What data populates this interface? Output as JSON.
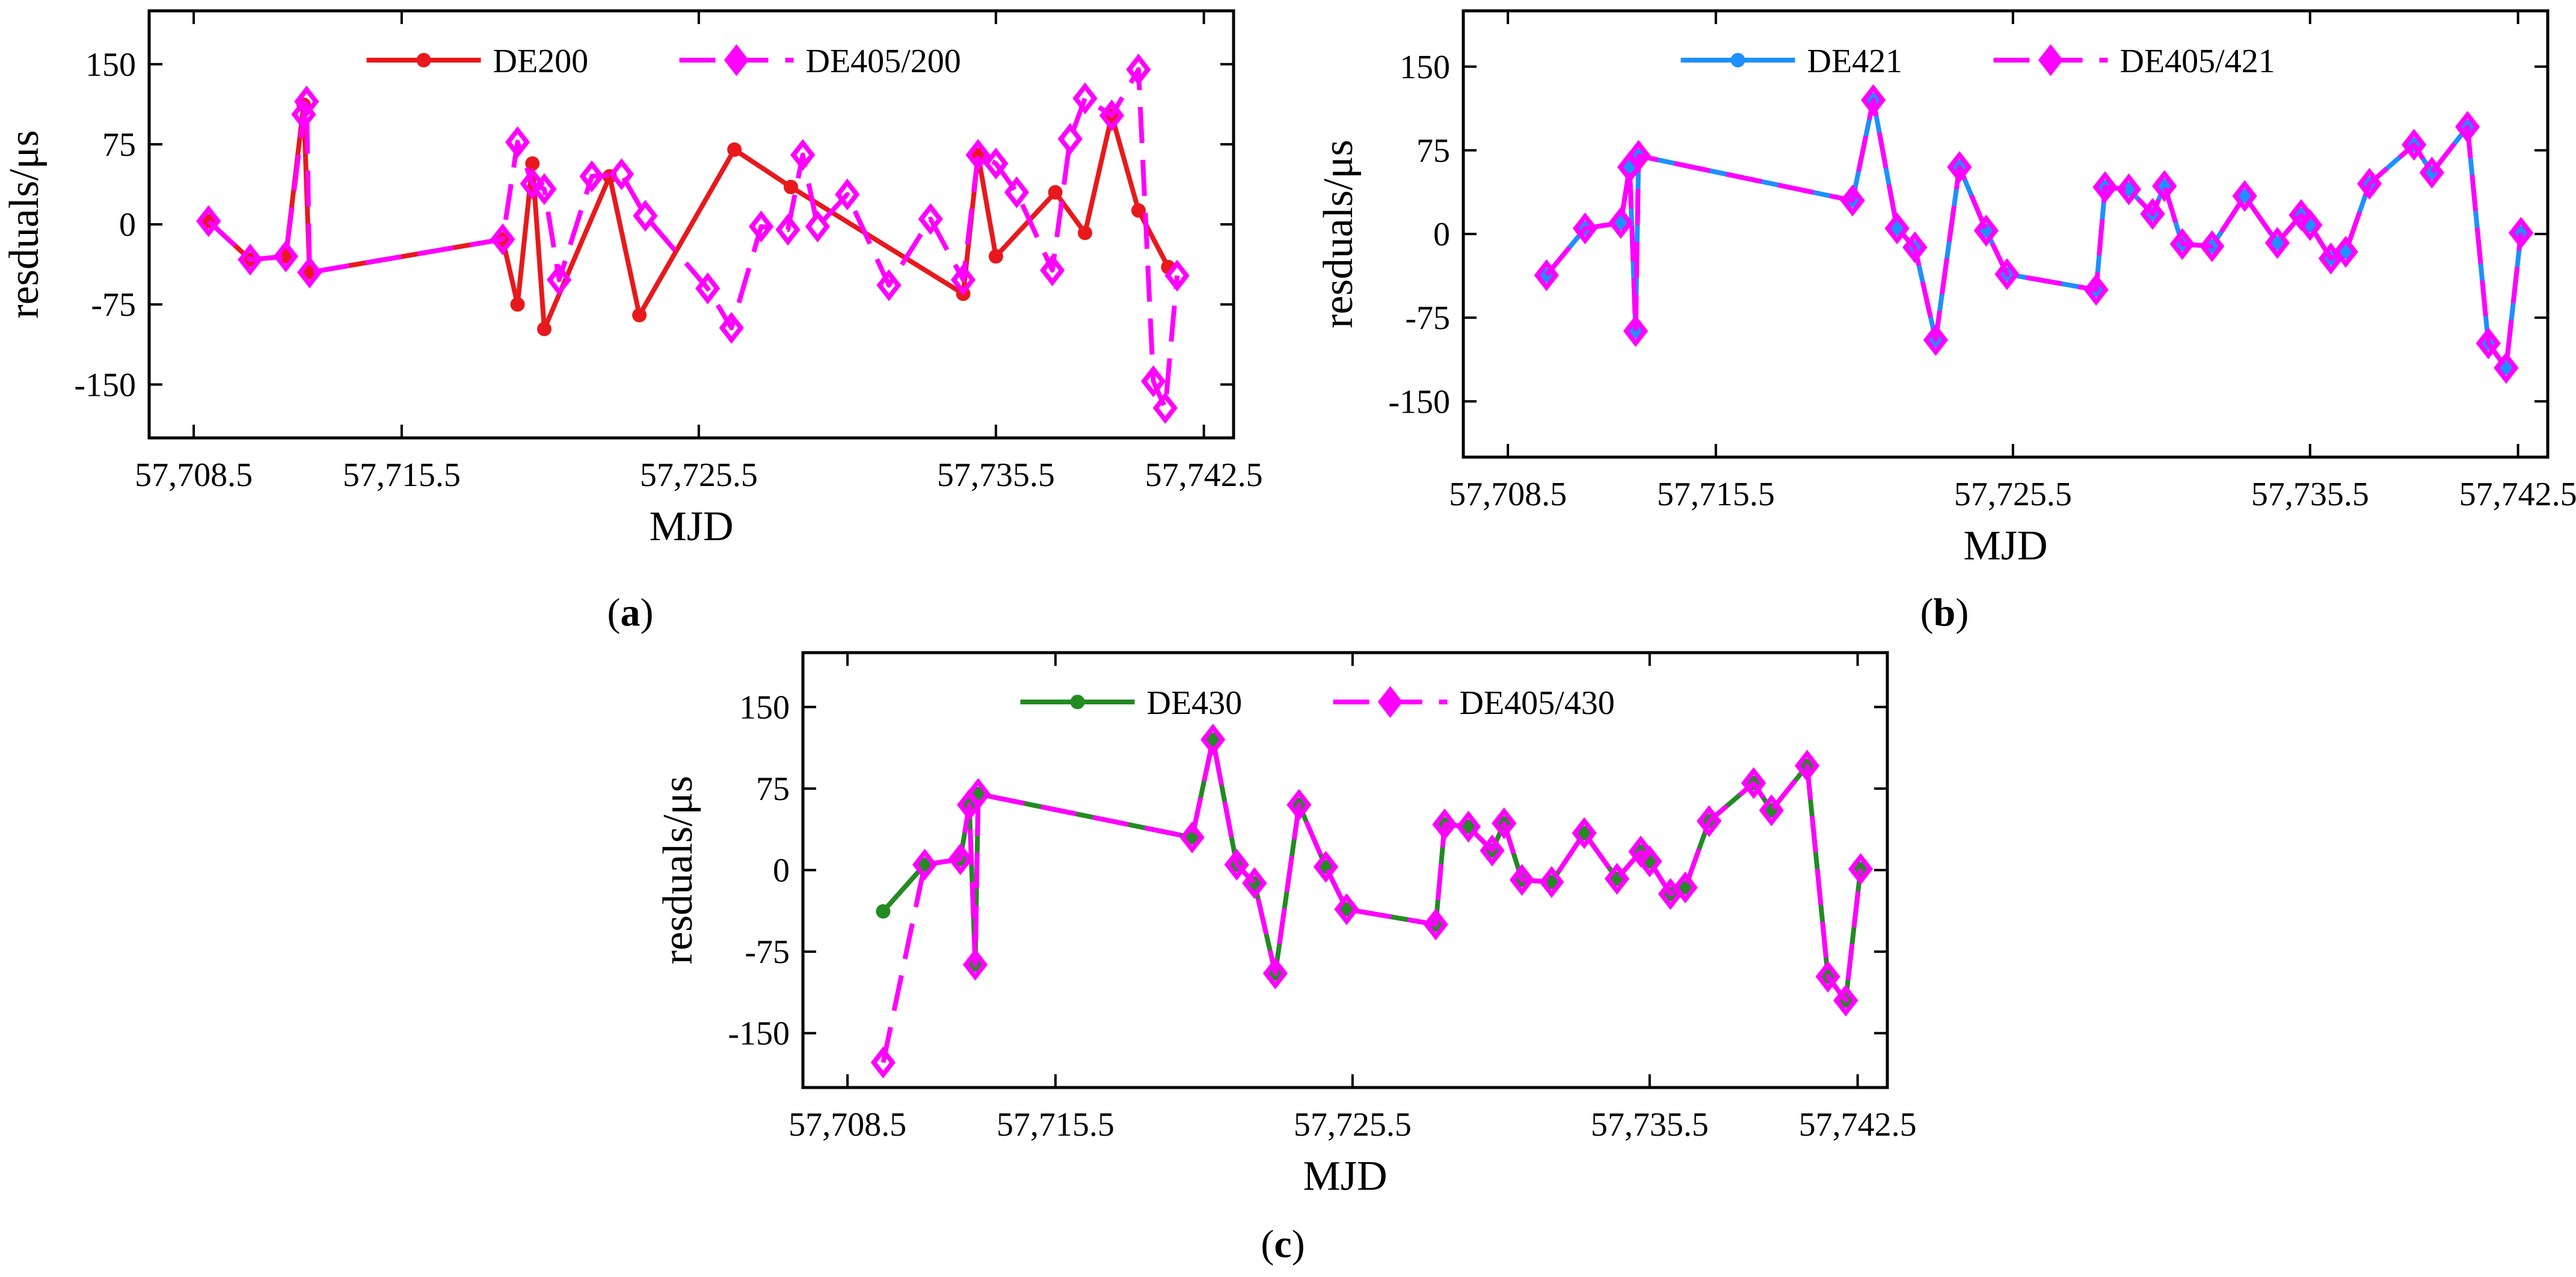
{
  "chart_data": [
    {
      "id": "a",
      "type": "line",
      "panel_label": "a",
      "xlabel": "MJD",
      "ylabel": "resduals/μs",
      "xlim": [
        57707,
        57743.5
      ],
      "ylim": [
        -200,
        200
      ],
      "xticks": [
        57708.5,
        57715.5,
        57725.5,
        57735.5,
        57742.5
      ],
      "xtick_labels": [
        "57,708.5",
        "57,715.5",
        "57,725.5",
        "57,735.5",
        "57,742.5"
      ],
      "yticks": [
        150,
        75,
        0,
        -75,
        -150
      ],
      "ytick_labels": [
        "150",
        "75",
        "0",
        "-75",
        "-150"
      ],
      "legend_position": "top-center",
      "series": [
        {
          "name": "DE200",
          "color": "#e8191c",
          "marker": "circle",
          "dash": "solid",
          "x": [
            57709.0,
            57710.4,
            57711.6,
            57712.2,
            57712.4,
            57718.9,
            57719.4,
            57719.9,
            57720.3,
            57722.5,
            57723.5,
            57726.7,
            57728.6,
            57734.4,
            57734.9,
            57735.5,
            57737.5,
            57738.5,
            57739.4,
            57740.3,
            57741.3
          ],
          "y": [
            3,
            -33,
            -30,
            112,
            -45,
            -14,
            -75,
            57,
            -98,
            45,
            -85,
            70,
            35,
            -65,
            65,
            -30,
            30,
            -8,
            102,
            13,
            -40
          ]
        },
        {
          "name": "DE405/200",
          "color": "#ff00ff",
          "marker": "diamond",
          "dash": "dashed",
          "x": [
            57709.0,
            57710.4,
            57711.6,
            57712.2,
            57712.3,
            57712.4,
            57718.9,
            57719.4,
            57719.9,
            57720.3,
            57720.8,
            57721.9,
            57722.9,
            57723.7,
            57725.8,
            57726.6,
            57727.6,
            57728.5,
            57729.0,
            57729.5,
            57730.5,
            57731.9,
            57733.3,
            57734.4,
            57734.9,
            57735.5,
            57736.2,
            57737.4,
            57738.0,
            57738.5,
            57739.4,
            57740.3,
            57740.8,
            57741.2,
            57741.6
          ],
          "y": [
            3,
            -33,
            -30,
            103,
            115,
            -45,
            -14,
            77,
            38,
            33,
            -52,
            45,
            47,
            8,
            -60,
            -97,
            -2,
            -5,
            65,
            -2,
            28,
            -57,
            5,
            -52,
            65,
            57,
            30,
            -43,
            80,
            118,
            102,
            145,
            -147,
            -172,
            -48
          ]
        }
      ]
    },
    {
      "id": "b",
      "type": "line",
      "panel_label": "b",
      "xlabel": "MJD",
      "ylabel": "resduals/μs",
      "xlim": [
        57707,
        57743.5
      ],
      "ylim": [
        -200,
        200
      ],
      "xticks": [
        57708.5,
        57715.5,
        57725.5,
        57735.5,
        57742.5
      ],
      "xtick_labels": [
        "57,708.5",
        "57,715.5",
        "57,725.5",
        "57,735.5",
        "57,742.5"
      ],
      "yticks": [
        150,
        75,
        0,
        -75,
        -150
      ],
      "ytick_labels": [
        "150",
        "75",
        "0",
        "-75",
        "-150"
      ],
      "legend_position": "top-center",
      "series": [
        {
          "name": "DE421",
          "color": "#1e90ff",
          "marker": "circle",
          "dash": "solid",
          "x": [
            57709.8,
            57711.1,
            57712.3,
            57712.6,
            57712.8,
            57712.9,
            57720.1,
            57720.8,
            57721.6,
            57722.2,
            57722.9,
            57723.7,
            57724.6,
            57725.3,
            57728.3,
            57728.6,
            57729.4,
            57730.2,
            57730.6,
            57731.2,
            57732.2,
            57733.3,
            57734.4,
            57735.2,
            57735.5,
            57736.2,
            57736.7,
            57737.5,
            57739.0,
            57739.6,
            57740.8,
            57741.5,
            57742.1,
            57742.6
          ],
          "y": [
            -37,
            5,
            10,
            60,
            -87,
            70,
            30,
            120,
            5,
            -12,
            -95,
            60,
            3,
            -36,
            -50,
            42,
            40,
            18,
            43,
            -9,
            -11,
            34,
            -8,
            17,
            8,
            -22,
            -16,
            45,
            80,
            55,
            96,
            -98,
            -120,
            1
          ]
        },
        {
          "name": "DE405/421",
          "color": "#ff00ff",
          "marker": "diamond",
          "dash": "dashed",
          "x": [
            57709.8,
            57711.1,
            57712.3,
            57712.6,
            57712.8,
            57712.9,
            57720.1,
            57720.8,
            57721.6,
            57722.2,
            57722.9,
            57723.7,
            57724.6,
            57725.3,
            57728.3,
            57728.6,
            57729.4,
            57730.2,
            57730.6,
            57731.2,
            57732.2,
            57733.3,
            57734.4,
            57735.2,
            57735.5,
            57736.2,
            57736.7,
            57737.5,
            57739.0,
            57739.6,
            57740.8,
            57741.5,
            57742.1,
            57742.6
          ],
          "y": [
            -37,
            5,
            10,
            60,
            -87,
            70,
            30,
            120,
            5,
            -12,
            -95,
            60,
            3,
            -36,
            -50,
            42,
            40,
            18,
            43,
            -9,
            -11,
            34,
            -8,
            17,
            8,
            -22,
            -16,
            45,
            80,
            55,
            96,
            -98,
            -120,
            1
          ]
        }
      ]
    },
    {
      "id": "c",
      "type": "line",
      "panel_label": "c",
      "xlabel": "MJD",
      "ylabel": "resduals/μs",
      "xlim": [
        57707,
        57743.5
      ],
      "ylim": [
        -200,
        200
      ],
      "xticks": [
        57708.5,
        57715.5,
        57725.5,
        57735.5,
        57742.5
      ],
      "xtick_labels": [
        "57,708.5",
        "57,715.5",
        "57,725.5",
        "57,735.5",
        "57,742.5"
      ],
      "yticks": [
        150,
        75,
        0,
        -75,
        -150
      ],
      "ytick_labels": [
        "150",
        "75",
        "0",
        "-75",
        "-150"
      ],
      "legend_position": "top-center",
      "series": [
        {
          "name": "DE430",
          "color": "#228b22",
          "marker": "circle",
          "dash": "solid",
          "x": [
            57709.7,
            57711.1,
            57712.3,
            57712.6,
            57712.8,
            57712.9,
            57720.1,
            57720.8,
            57721.6,
            57722.2,
            57722.9,
            57723.7,
            57724.6,
            57725.3,
            57728.3,
            57728.6,
            57729.4,
            57730.2,
            57730.6,
            57731.2,
            57732.2,
            57733.3,
            57734.4,
            57735.2,
            57735.5,
            57736.2,
            57736.7,
            57737.5,
            57739.0,
            57739.6,
            57740.8,
            57741.5,
            57742.1,
            57742.6
          ],
          "y": [
            -38,
            5,
            10,
            60,
            -87,
            70,
            30,
            120,
            5,
            -12,
            -95,
            60,
            3,
            -36,
            -50,
            42,
            40,
            18,
            43,
            -9,
            -11,
            34,
            -8,
            17,
            8,
            -22,
            -16,
            45,
            80,
            55,
            96,
            -98,
            -120,
            1
          ]
        },
        {
          "name": "DE405/430",
          "color": "#ff00ff",
          "marker": "diamond",
          "dash": "dashed",
          "x": [
            57709.7,
            57711.1,
            57712.3,
            57712.6,
            57712.8,
            57712.9,
            57720.1,
            57720.8,
            57721.6,
            57722.2,
            57722.9,
            57723.7,
            57724.6,
            57725.3,
            57728.3,
            57728.6,
            57729.4,
            57730.2,
            57730.6,
            57731.2,
            57732.2,
            57733.3,
            57734.4,
            57735.2,
            57735.5,
            57736.2,
            57736.7,
            57737.5,
            57739.0,
            57739.6,
            57740.8,
            57741.5,
            57742.1,
            57742.6
          ],
          "y": [
            -177,
            5,
            10,
            60,
            -87,
            70,
            30,
            120,
            5,
            -12,
            -95,
            60,
            3,
            -36,
            -50,
            42,
            40,
            18,
            43,
            -9,
            -11,
            34,
            -8,
            17,
            8,
            -22,
            -16,
            45,
            80,
            55,
            96,
            -98,
            -120,
            1
          ]
        }
      ]
    }
  ]
}
